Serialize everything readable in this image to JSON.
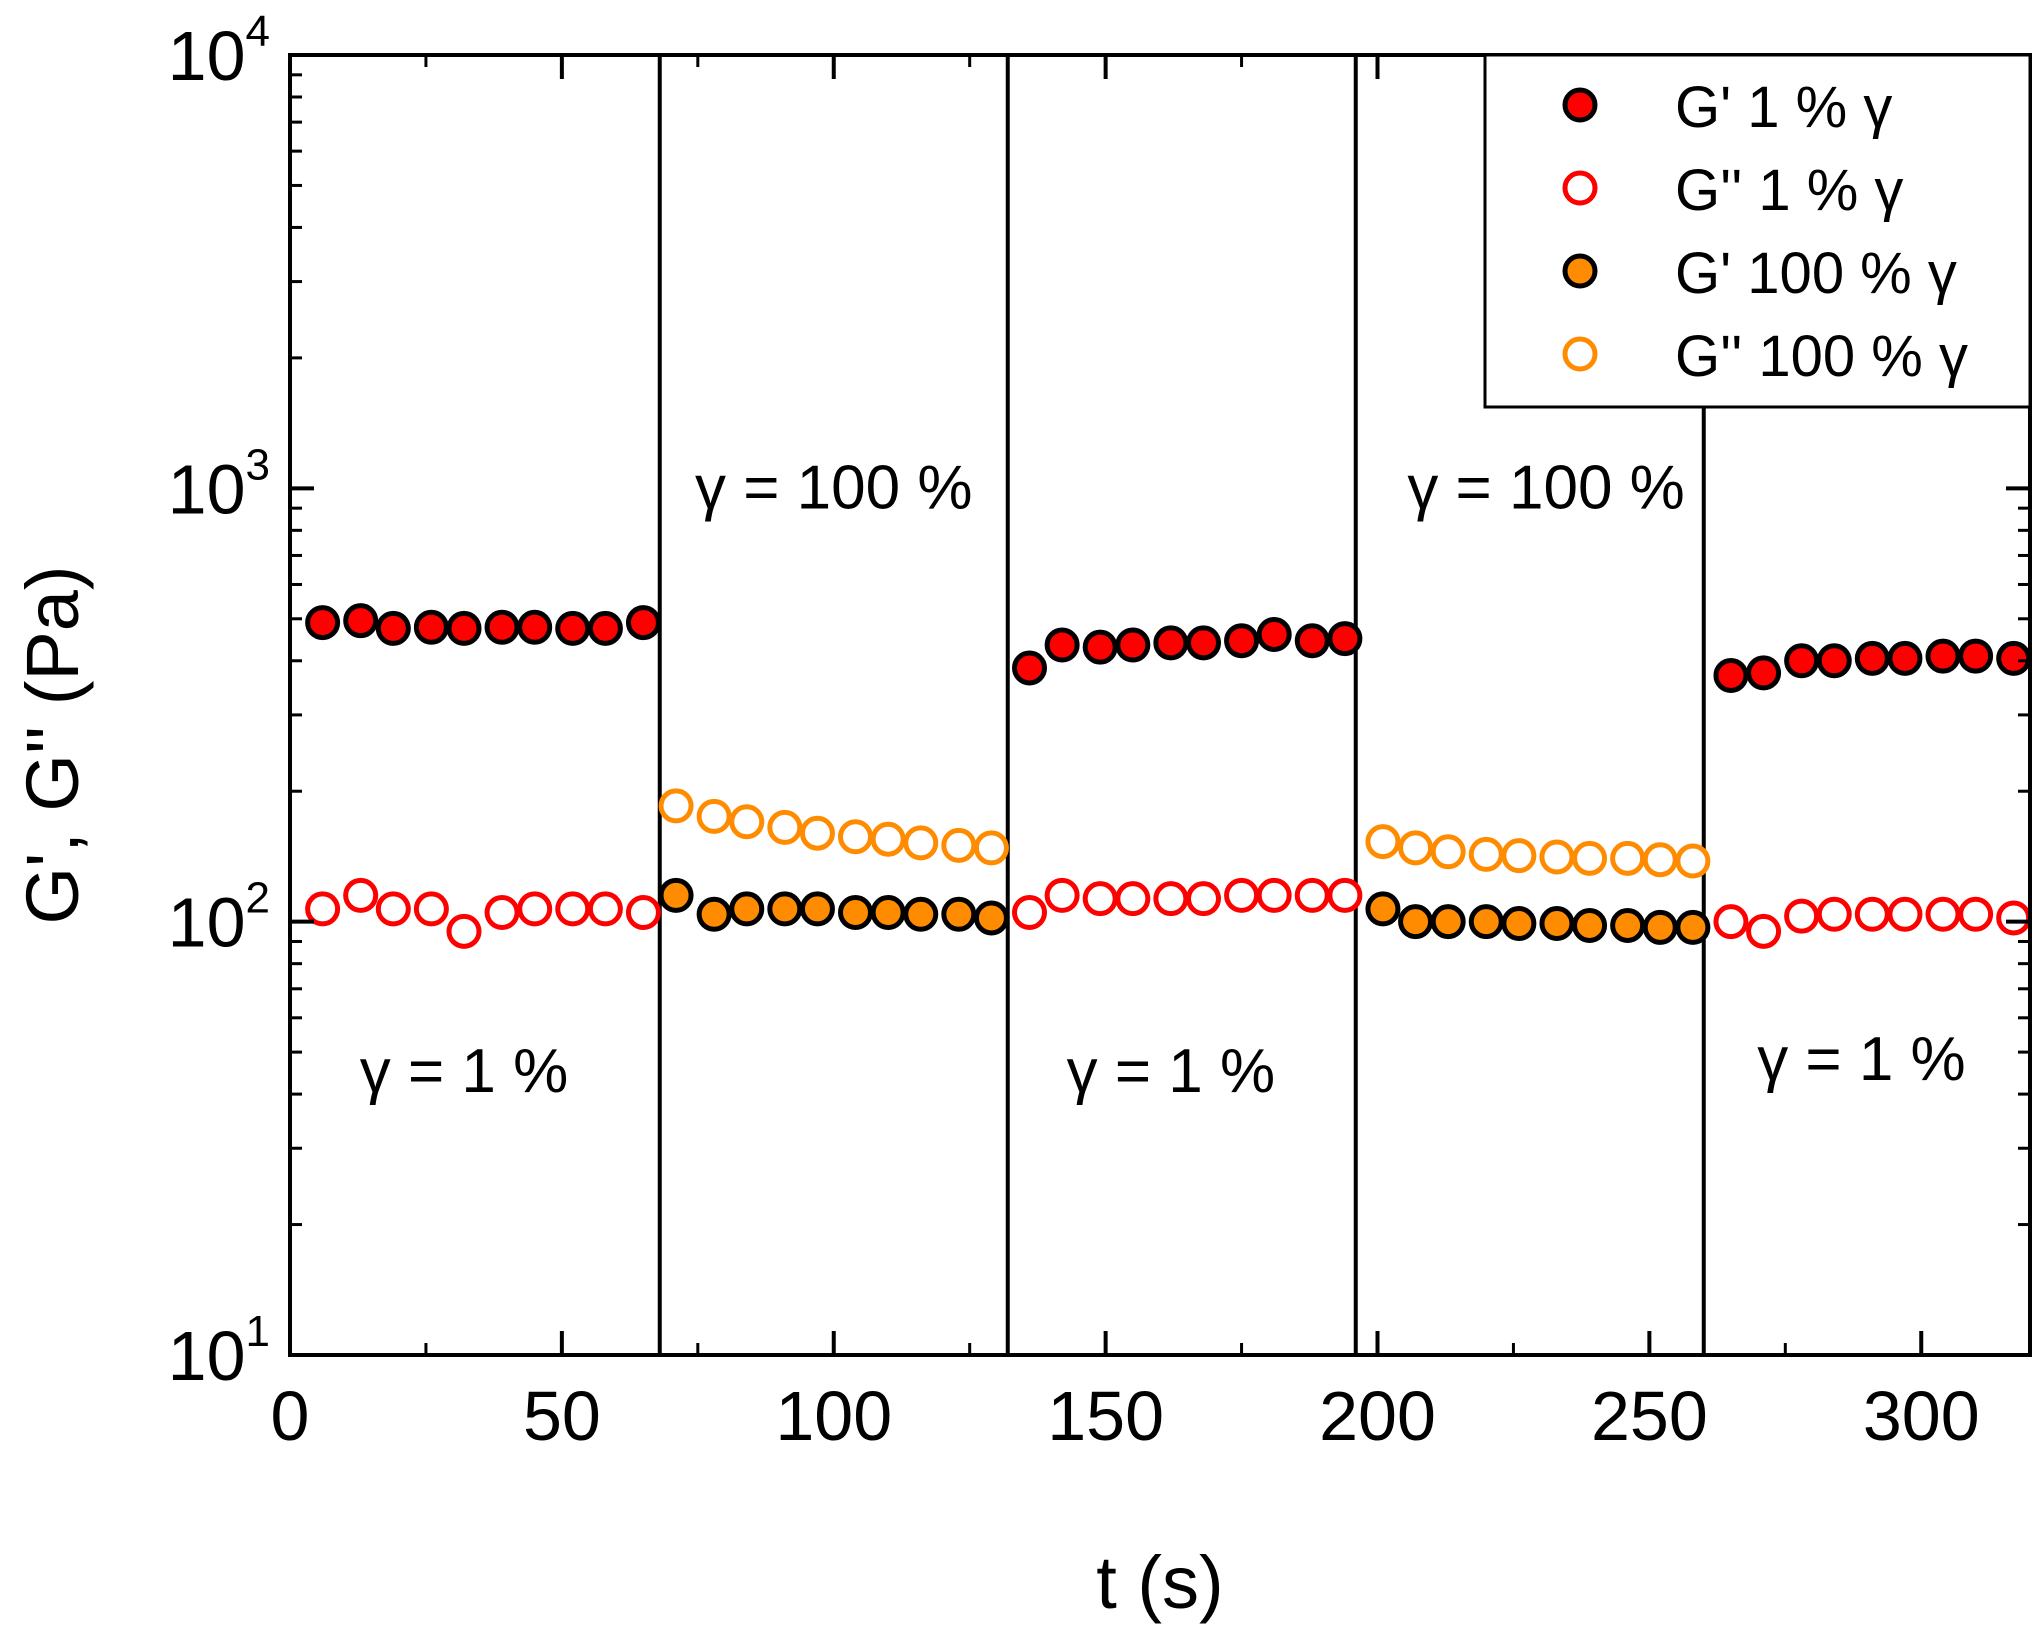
{
  "chart_data": {
    "type": "scatter",
    "x_scale": "linear",
    "y_scale": "log",
    "xlabel": "t (s)",
    "ylabel": "G', G'' (Pa)",
    "xlim": [
      0,
      320
    ],
    "ylim": [
      10,
      10000
    ],
    "x_ticks": [
      0,
      50,
      100,
      150,
      200,
      250,
      300
    ],
    "y_ticks": [
      {
        "base": "10",
        "exp": "1",
        "value": 10
      },
      {
        "base": "10",
        "exp": "2",
        "value": 100
      },
      {
        "base": "10",
        "exp": "3",
        "value": 1000
      },
      {
        "base": "10",
        "exp": "4",
        "value": 10000
      }
    ],
    "phase_boundaries": [
      68,
      132,
      196,
      260
    ],
    "annotations": [
      {
        "text": "γ = 1 %",
        "x": 32,
        "y": 45
      },
      {
        "text": "γ = 100 %",
        "x": 100,
        "y": 1000
      },
      {
        "text": "γ = 1 %",
        "x": 162,
        "y": 45
      },
      {
        "text": "γ = 100 %",
        "x": 231,
        "y": 1000
      },
      {
        "text": "γ = 1 %",
        "x": 289,
        "y": 48
      }
    ],
    "legend_position": "top-right",
    "series": [
      {
        "name": "G' 1 % γ",
        "marker": "filled",
        "color": "#ff0000",
        "edge": "#000000",
        "x": [
          6,
          13,
          19,
          26,
          32,
          39,
          45,
          52,
          58,
          65,
          136,
          142,
          149,
          155,
          162,
          168,
          175,
          181,
          188,
          194,
          265,
          271,
          278,
          284,
          291,
          297,
          304,
          310,
          317
        ],
        "y": [
          490,
          495,
          475,
          478,
          475,
          478,
          478,
          475,
          475,
          490,
          385,
          435,
          430,
          435,
          440,
          440,
          445,
          460,
          445,
          450,
          370,
          375,
          400,
          400,
          405,
          405,
          410,
          410,
          405
        ]
      },
      {
        "name": "G'' 1 % γ",
        "marker": "open",
        "color": "#ff0000",
        "x": [
          6,
          13,
          19,
          26,
          32,
          39,
          45,
          52,
          58,
          65,
          136,
          142,
          149,
          155,
          162,
          168,
          175,
          181,
          188,
          194,
          265,
          271,
          278,
          284,
          291,
          297,
          304,
          310,
          317
        ],
        "y": [
          107,
          115,
          107,
          107,
          95,
          105,
          107,
          107,
          107,
          105,
          105,
          115,
          113,
          113,
          113,
          113,
          115,
          115,
          115,
          115,
          100,
          95,
          103,
          104,
          104,
          104,
          104,
          104,
          102
        ]
      },
      {
        "name": "G' 100 % γ",
        "marker": "filled",
        "color": "#ff8c00",
        "edge": "#000000",
        "x": [
          71,
          78,
          84,
          91,
          97,
          104,
          110,
          116,
          123,
          129,
          201,
          207,
          213,
          220,
          226,
          233,
          239,
          246,
          252,
          258
        ],
        "y": [
          115,
          104,
          107,
          107,
          107,
          105,
          105,
          104,
          104,
          102,
          107,
          100,
          100,
          100,
          99,
          99,
          98,
          98,
          97,
          97
        ]
      },
      {
        "name": "G'' 100 % γ",
        "marker": "open",
        "color": "#ff8c00",
        "x": [
          71,
          78,
          84,
          91,
          97,
          104,
          110,
          116,
          123,
          129,
          201,
          207,
          213,
          220,
          226,
          233,
          239,
          246,
          252,
          258
        ],
        "y": [
          185,
          175,
          170,
          165,
          160,
          157,
          155,
          152,
          150,
          148,
          153,
          148,
          145,
          143,
          142,
          141,
          140,
          140,
          139,
          138
        ]
      }
    ]
  }
}
